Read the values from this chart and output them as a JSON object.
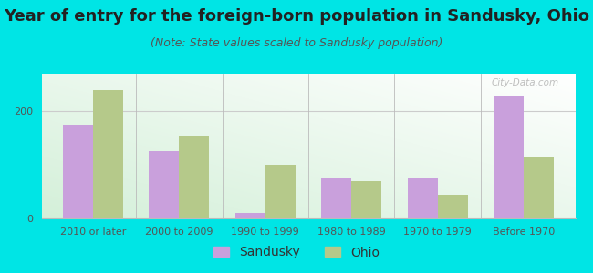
{
  "title": "Year of entry for the foreign-born population in Sandusky, Ohio",
  "subtitle": "(Note: State values scaled to Sandusky population)",
  "categories": [
    "2010 or later",
    "2000 to 2009",
    "1990 to 1999",
    "1980 to 1989",
    "1970 to 1979",
    "Before 1970"
  ],
  "sandusky_values": [
    175,
    125,
    10,
    75,
    75,
    230
  ],
  "ohio_values": [
    240,
    155,
    100,
    70,
    45,
    115
  ],
  "sandusky_color": "#c9a0dc",
  "ohio_color": "#b5c98a",
  "bg_outer": "#00e5e5",
  "yticks": [
    0,
    200
  ],
  "ylim": [
    0,
    270
  ],
  "bar_width": 0.35,
  "title_fontsize": 13,
  "subtitle_fontsize": 9,
  "legend_fontsize": 10,
  "tick_fontsize": 8,
  "watermark_text": "City-Data.com"
}
